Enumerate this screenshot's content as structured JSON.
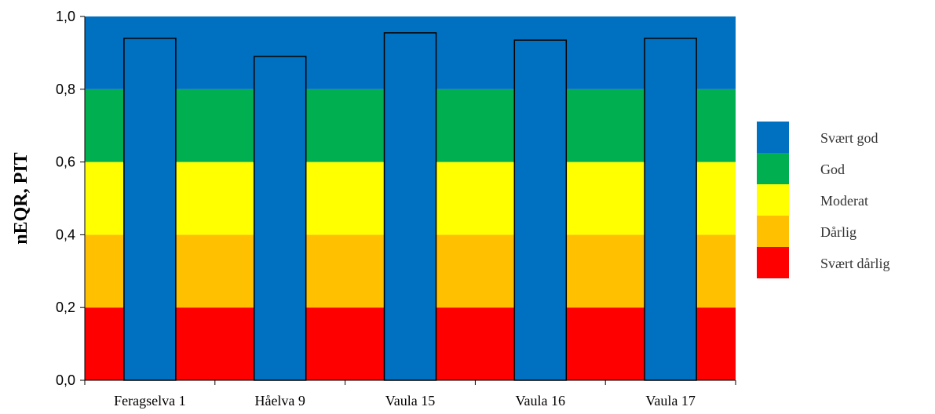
{
  "chart_data": {
    "type": "bar",
    "categories": [
      "Feragselva 1",
      "Håelva 9",
      "Vaula 15",
      "Vaula 16",
      "Vaula 17"
    ],
    "values": [
      0.94,
      0.89,
      0.955,
      0.935,
      0.94
    ],
    "bar_color": "#0070c0",
    "xlabel": "",
    "ylabel": "nEQR, PIT",
    "ylim": [
      0,
      1.0
    ],
    "yticks": [
      0.0,
      0.2,
      0.4,
      0.6,
      0.8,
      1.0
    ],
    "ytick_labels": [
      "0,0",
      "0,2",
      "0,4",
      "0,6",
      "0,8",
      "1,0"
    ],
    "grid": false,
    "legend_position": "right",
    "bands": [
      {
        "name": "Svært dårlig",
        "from": 0.0,
        "to": 0.2,
        "color": "#ff0000"
      },
      {
        "name": "Dårlig",
        "from": 0.2,
        "to": 0.4,
        "color": "#ffc000"
      },
      {
        "name": "Moderat",
        "from": 0.4,
        "to": 0.6,
        "color": "#ffff00"
      },
      {
        "name": "God",
        "from": 0.6,
        "to": 0.8,
        "color": "#00b050"
      },
      {
        "name": "Svært god",
        "from": 0.8,
        "to": 1.0,
        "color": "#0070c0"
      }
    ],
    "legend": [
      {
        "label": "Svært god",
        "color": "#0070c0"
      },
      {
        "label": "God",
        "color": "#00b050"
      },
      {
        "label": "Moderat",
        "color": "#ffff00"
      },
      {
        "label": "Dårlig",
        "color": "#ffc000"
      },
      {
        "label": "Svært dårlig",
        "color": "#ff0000"
      }
    ]
  }
}
